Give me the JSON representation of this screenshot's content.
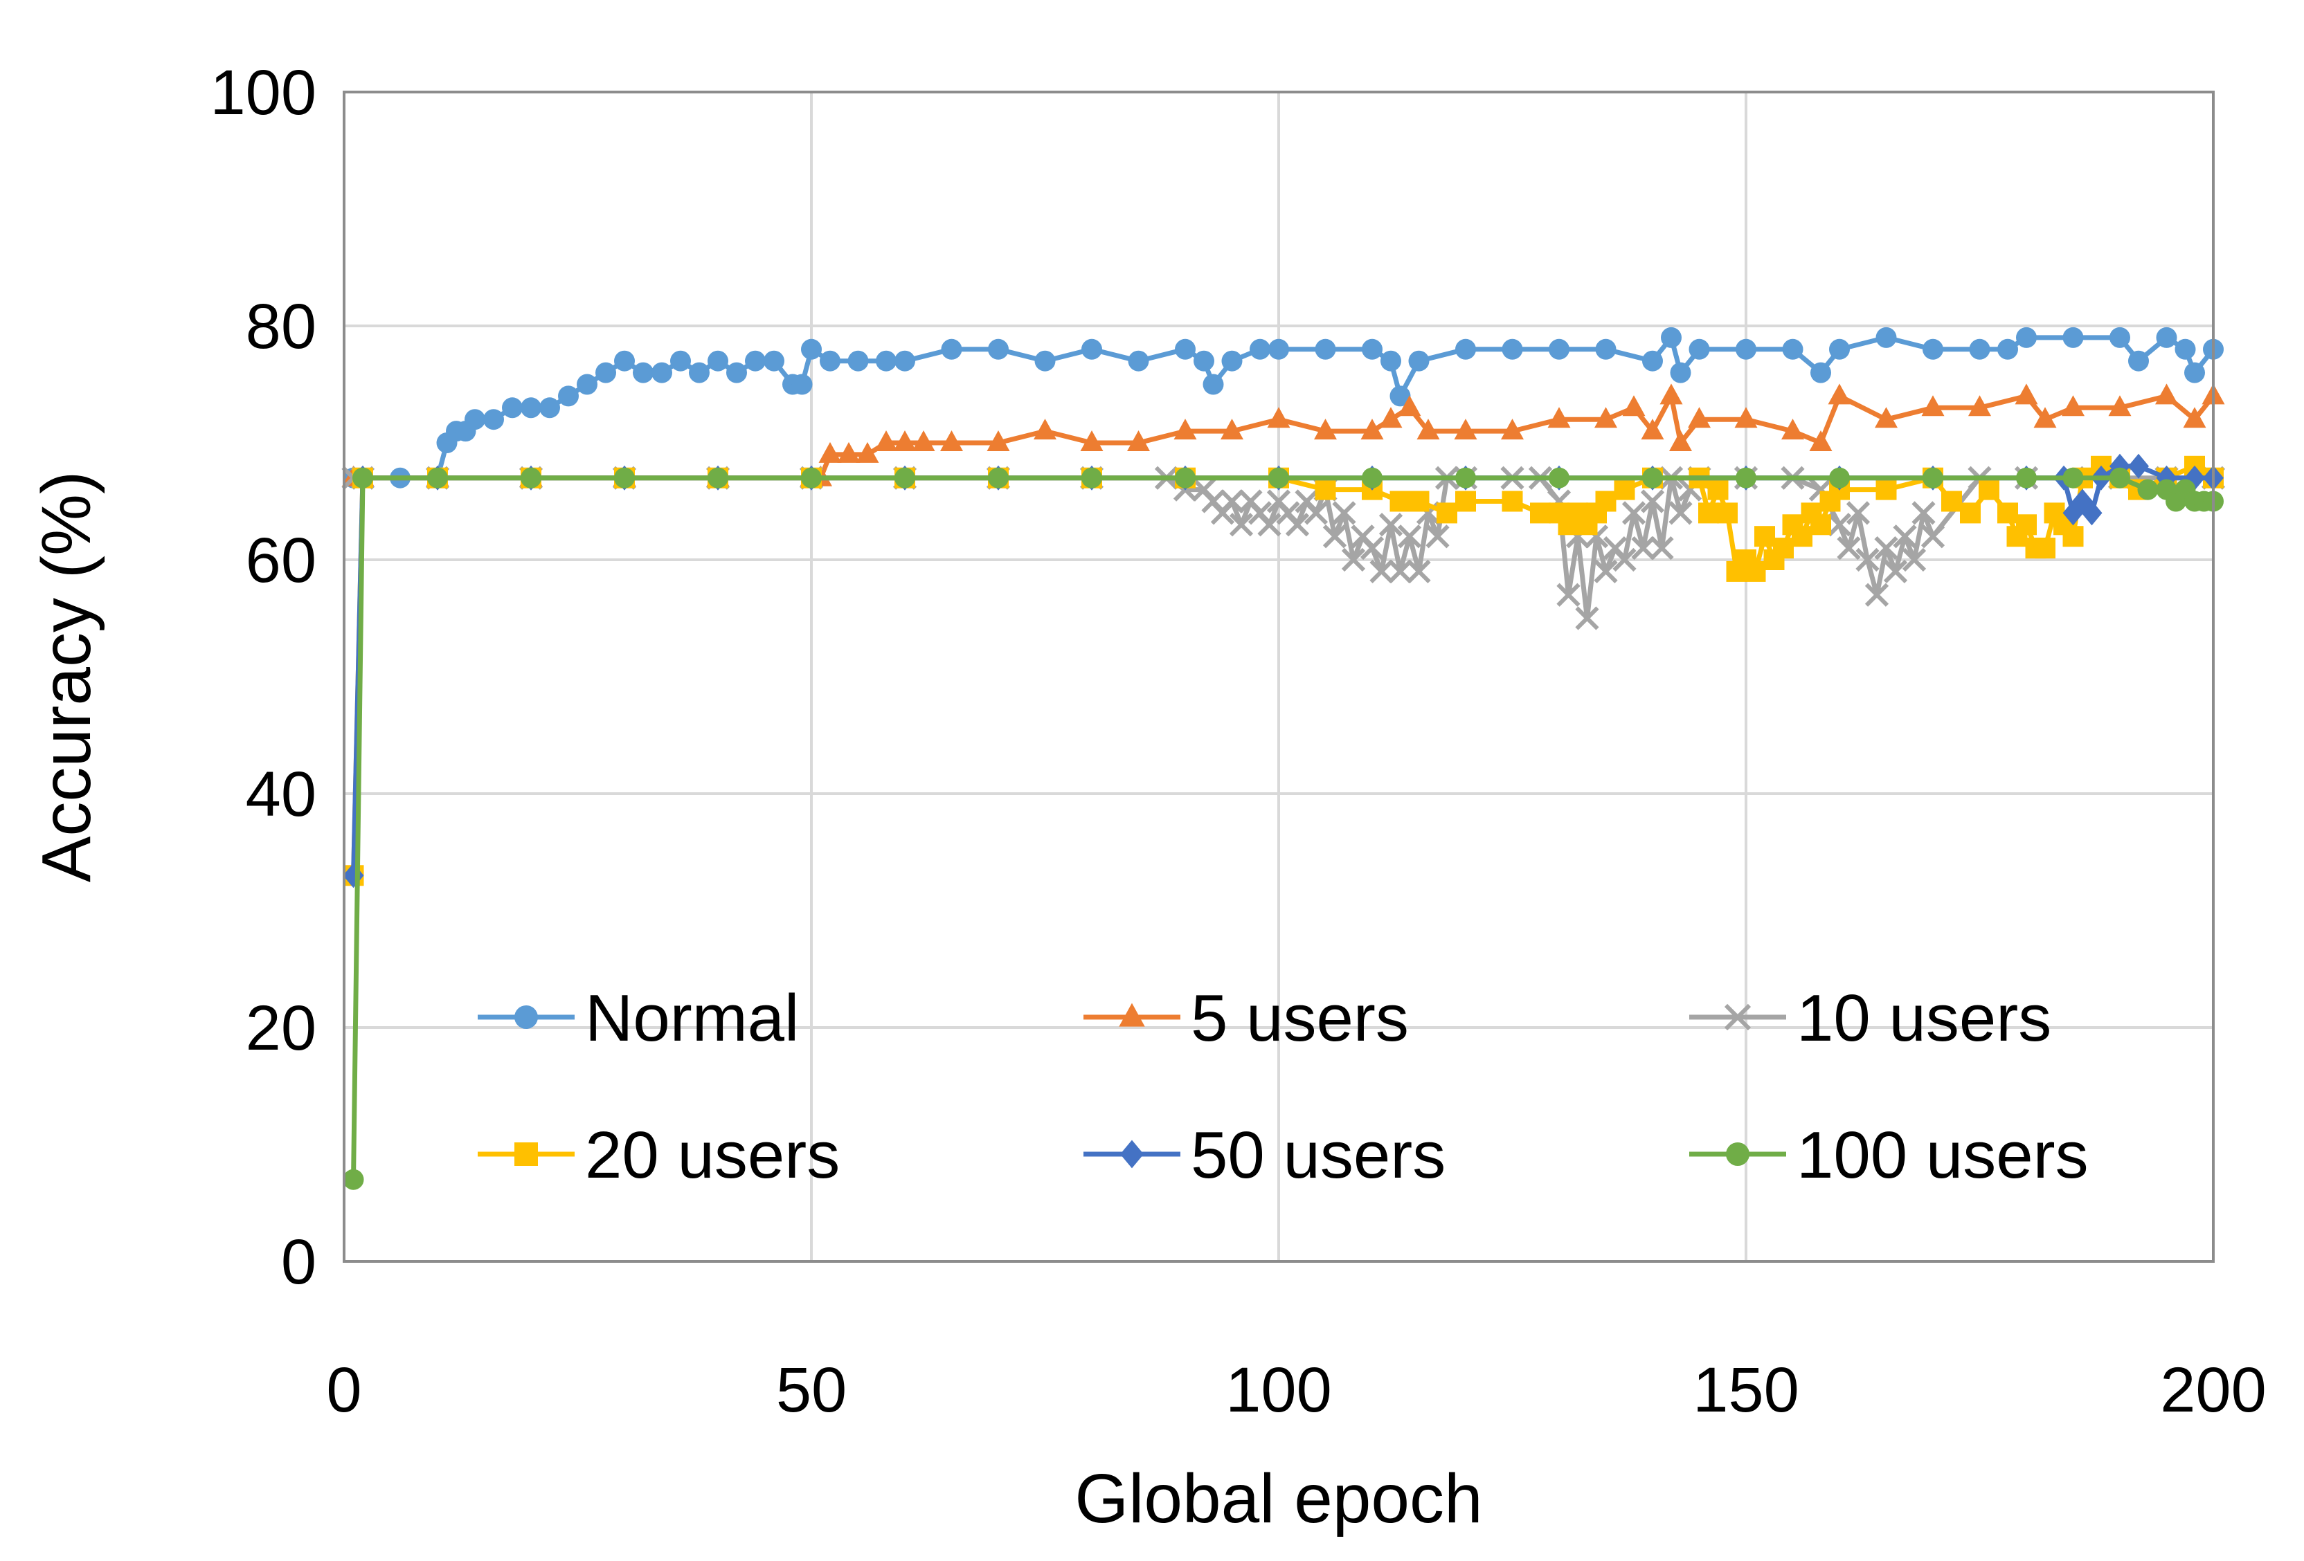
{
  "chart_data": {
    "type": "line",
    "title": "",
    "xlabel": "Global epoch",
    "ylabel": "Accuracy (%)",
    "xlim": [
      0,
      200
    ],
    "ylim": [
      0,
      100
    ],
    "xticks": [
      0,
      50,
      100,
      150,
      200
    ],
    "yticks": [
      0,
      20,
      40,
      60,
      80,
      100
    ],
    "grid": true,
    "legend_position": "bottom",
    "series": [
      {
        "name": "Normal",
        "color": "#5B9BD5",
        "marker": "circle",
        "x": [
          1,
          2,
          6,
          10,
          11,
          12,
          13,
          14,
          16,
          18,
          20,
          22,
          24,
          26,
          28,
          30,
          32,
          34,
          36,
          38,
          40,
          42,
          44,
          46,
          48,
          49,
          50,
          52,
          55,
          58,
          60,
          65,
          70,
          75,
          80,
          85,
          90,
          92,
          93,
          95,
          98,
          100,
          105,
          110,
          112,
          113,
          115,
          120,
          125,
          130,
          135,
          140,
          142,
          143,
          145,
          150,
          155,
          158,
          160,
          165,
          170,
          175,
          178,
          180,
          185,
          190,
          192,
          195,
          197,
          198,
          200
        ],
        "y": [
          67,
          67,
          67,
          67,
          70,
          71,
          71,
          72,
          72,
          73,
          73,
          73,
          74,
          75,
          76,
          77,
          76,
          76,
          77,
          76,
          77,
          76,
          77,
          77,
          75,
          75,
          78,
          77,
          77,
          77,
          77,
          78,
          78,
          77,
          78,
          77,
          78,
          77,
          75,
          77,
          78,
          78,
          78,
          78,
          77,
          74,
          77,
          78,
          78,
          78,
          78,
          77,
          79,
          76,
          78,
          78,
          78,
          76,
          78,
          79,
          78,
          78,
          78,
          79,
          79,
          79,
          77,
          79,
          78,
          76,
          78
        ]
      },
      {
        "name": "5 users",
        "color": "#ED7D31",
        "marker": "triangle",
        "x": [
          1,
          2,
          10,
          20,
          30,
          40,
          50,
          51,
          52,
          54,
          56,
          58,
          60,
          62,
          65,
          70,
          75,
          80,
          85,
          90,
          95,
          100,
          105,
          110,
          112,
          114,
          116,
          120,
          125,
          130,
          135,
          138,
          140,
          142,
          143,
          145,
          150,
          155,
          158,
          160,
          165,
          170,
          175,
          180,
          182,
          185,
          190,
          195,
          198,
          200
        ],
        "y": [
          67,
          67,
          67,
          67,
          67,
          67,
          67,
          67,
          69,
          69,
          69,
          70,
          70,
          70,
          70,
          70,
          71,
          70,
          70,
          71,
          71,
          72,
          71,
          71,
          72,
          73,
          71,
          71,
          71,
          72,
          72,
          73,
          71,
          74,
          70,
          72,
          72,
          71,
          70,
          74,
          72,
          73,
          73,
          74,
          72,
          73,
          73,
          74,
          72,
          74
        ]
      },
      {
        "name": "10 users",
        "color": "#A5A5A5",
        "marker": "x",
        "x": [
          1,
          2,
          10,
          20,
          30,
          40,
          50,
          60,
          70,
          80,
          88,
          90,
          92,
          93,
          94,
          95,
          96,
          97,
          98,
          99,
          100,
          101,
          102,
          103,
          104,
          105,
          106,
          107,
          108,
          109,
          110,
          111,
          112,
          113,
          114,
          115,
          116,
          117,
          118,
          120,
          125,
          128,
          130,
          131,
          132,
          133,
          134,
          135,
          136,
          137,
          138,
          139,
          140,
          141,
          142,
          143,
          144,
          145,
          150,
          155,
          158,
          160,
          161,
          162,
          163,
          164,
          165,
          166,
          167,
          168,
          169,
          170,
          175,
          180,
          185,
          190,
          195,
          200
        ],
        "y": [
          67,
          67,
          67,
          67,
          67,
          67,
          67,
          67,
          67,
          67,
          67,
          66,
          66,
          65,
          64,
          65,
          63,
          65,
          64,
          63,
          65,
          64,
          63,
          65,
          64,
          66,
          62,
          64,
          60,
          62,
          61,
          59,
          63,
          59,
          62,
          59,
          64,
          62,
          67,
          67,
          67,
          67,
          65,
          57,
          62,
          55,
          62,
          59,
          61,
          60,
          64,
          61,
          65,
          61,
          67,
          64,
          66,
          67,
          67,
          67,
          66,
          63,
          61,
          64,
          60,
          57,
          61,
          59,
          62,
          60,
          64,
          62,
          67,
          67,
          67,
          67,
          67,
          67
        ]
      },
      {
        "name": "20 users",
        "color": "#FFC000",
        "marker": "square",
        "x": [
          1,
          2,
          10,
          20,
          30,
          40,
          50,
          60,
          70,
          80,
          90,
          100,
          105,
          110,
          113,
          115,
          118,
          120,
          125,
          128,
          130,
          131,
          132,
          133,
          134,
          135,
          137,
          140,
          145,
          146,
          147,
          148,
          149,
          150,
          151,
          152,
          153,
          154,
          155,
          156,
          157,
          158,
          159,
          160,
          165,
          170,
          172,
          174,
          176,
          178,
          179,
          180,
          181,
          182,
          183,
          184,
          185,
          186,
          188,
          190,
          192,
          195,
          198,
          200
        ],
        "y": [
          33,
          67,
          67,
          67,
          67,
          67,
          67,
          67,
          67,
          67,
          67,
          67,
          66,
          66,
          65,
          65,
          64,
          65,
          65,
          64,
          64,
          63,
          64,
          63,
          64,
          65,
          66,
          67,
          67,
          64,
          66,
          64,
          59,
          60,
          59,
          62,
          60,
          61,
          63,
          62,
          64,
          63,
          65,
          66,
          66,
          67,
          65,
          64,
          66,
          64,
          62,
          63,
          61,
          61,
          64,
          63,
          62,
          67,
          68,
          67,
          66,
          67,
          68,
          67
        ]
      },
      {
        "name": "50 users",
        "color": "#4472C4",
        "marker": "diamond",
        "x": [
          1,
          2,
          10,
          20,
          30,
          40,
          50,
          60,
          70,
          80,
          90,
          100,
          110,
          120,
          130,
          140,
          150,
          160,
          170,
          180,
          184,
          185,
          186,
          187,
          188,
          190,
          192,
          195,
          198,
          200
        ],
        "y": [
          33,
          67,
          67,
          67,
          67,
          67,
          67,
          67,
          67,
          67,
          67,
          67,
          67,
          67,
          67,
          67,
          67,
          67,
          67,
          67,
          67,
          64,
          65,
          64,
          67,
          68,
          68,
          67,
          67,
          67
        ]
      },
      {
        "name": "100 users",
        "color": "#70AD47",
        "marker": "circle",
        "x": [
          1,
          2,
          10,
          20,
          30,
          40,
          50,
          60,
          70,
          80,
          90,
          100,
          110,
          120,
          130,
          140,
          150,
          160,
          170,
          180,
          185,
          190,
          193,
          195,
          196,
          197,
          198,
          199,
          200
        ],
        "y": [
          7,
          67,
          67,
          67,
          67,
          67,
          67,
          67,
          67,
          67,
          67,
          67,
          67,
          67,
          67,
          67,
          67,
          67,
          67,
          67,
          67,
          67,
          66,
          66,
          65,
          66,
          65,
          65,
          65
        ]
      }
    ]
  }
}
